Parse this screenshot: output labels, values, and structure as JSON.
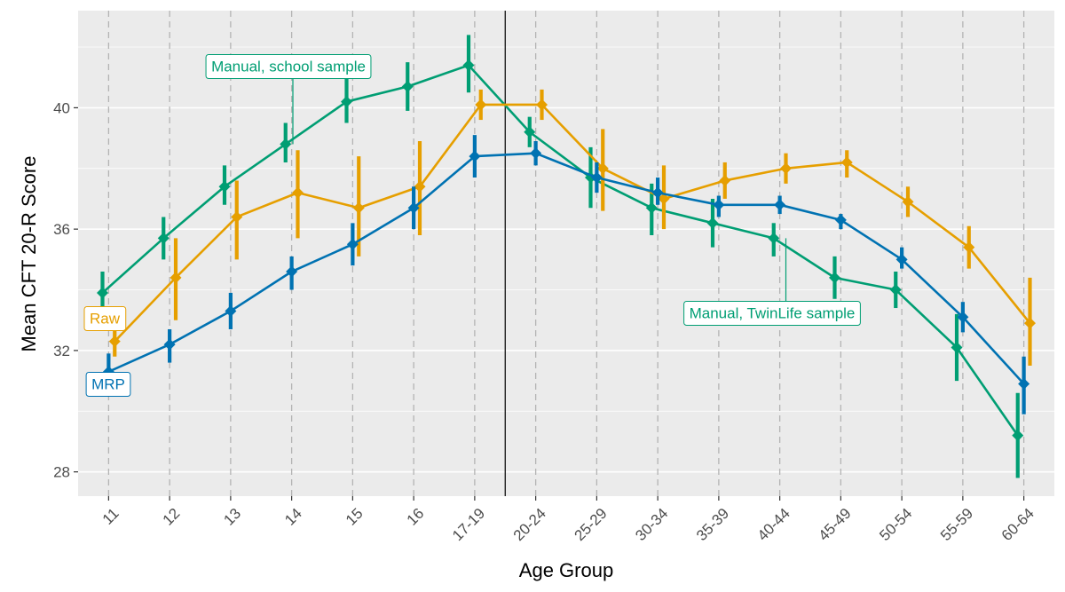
{
  "chart_data": {
    "type": "line",
    "title": "",
    "xlabel": "Age Group",
    "ylabel": "Mean CFT 20-R Score",
    "categories": [
      "11",
      "12",
      "13",
      "14",
      "15",
      "16",
      "17-19",
      "20-24",
      "25-29",
      "30-34",
      "35-39",
      "40-44",
      "45-49",
      "50-54",
      "55-59",
      "60-64"
    ],
    "ylim": [
      27.2,
      43.2
    ],
    "yticks": [
      28,
      32,
      36,
      40
    ],
    "ytick_labels": [
      "28",
      "32",
      "36",
      "40"
    ],
    "divider_between": [
      "17-19",
      "20-24"
    ],
    "grid": true,
    "series": [
      {
        "key": "manual",
        "color": "#009E73",
        "x_offset": -0.1,
        "values": [
          33.9,
          35.7,
          37.4,
          38.8,
          40.2,
          40.7,
          41.4,
          39.2,
          37.7,
          36.7,
          36.2,
          35.7,
          34.4,
          34.0,
          32.1,
          29.2
        ],
        "lower": [
          33.2,
          35.0,
          36.8,
          38.2,
          39.5,
          39.9,
          40.5,
          38.7,
          36.7,
          35.8,
          35.4,
          35.1,
          33.7,
          33.4,
          31.0,
          27.8
        ],
        "upper": [
          34.6,
          36.4,
          38.1,
          39.5,
          41.0,
          41.5,
          42.4,
          39.7,
          38.7,
          37.5,
          37.0,
          36.2,
          35.1,
          34.6,
          33.2,
          30.6
        ]
      },
      {
        "key": "raw",
        "color": "#E69F00",
        "x_offset": 0.1,
        "values": [
          32.3,
          34.4,
          36.4,
          37.2,
          36.7,
          37.4,
          40.1,
          40.1,
          38.0,
          37.0,
          37.6,
          38.0,
          38.2,
          36.9,
          35.4,
          32.9
        ],
        "lower": [
          31.8,
          33.0,
          35.0,
          35.7,
          35.1,
          35.8,
          39.6,
          39.6,
          36.6,
          36.0,
          37.0,
          37.5,
          37.7,
          36.4,
          34.7,
          31.5
        ],
        "upper": [
          32.8,
          35.7,
          37.6,
          38.6,
          38.4,
          38.9,
          40.6,
          40.6,
          39.3,
          38.1,
          38.2,
          38.5,
          38.6,
          37.4,
          36.1,
          34.4
        ]
      },
      {
        "key": "mrp",
        "color": "#0072B2",
        "x_offset": 0.0,
        "values": [
          31.3,
          32.2,
          33.3,
          34.6,
          35.5,
          36.7,
          38.4,
          38.5,
          37.7,
          37.2,
          36.8,
          36.8,
          36.3,
          35.0,
          33.1,
          30.9
        ],
        "lower": [
          30.8,
          31.6,
          32.7,
          34.0,
          34.8,
          36.0,
          37.7,
          38.1,
          37.2,
          36.8,
          36.4,
          36.5,
          36.0,
          34.7,
          32.6,
          29.9
        ],
        "upper": [
          31.9,
          32.7,
          33.9,
          35.1,
          36.2,
          37.4,
          39.1,
          38.9,
          38.2,
          37.7,
          37.1,
          37.1,
          36.5,
          35.4,
          33.6,
          31.8
        ]
      }
    ],
    "annotations": [
      {
        "key": "manual-school",
        "text": "Manual, school sample",
        "series": "manual",
        "color": "#009E73"
      },
      {
        "key": "manual-twinlife",
        "text": "Manual, TwinLife sample",
        "series": "manual",
        "color": "#009E73"
      },
      {
        "key": "raw",
        "text": "Raw",
        "series": "raw",
        "color": "#E69F00"
      },
      {
        "key": "mrp",
        "text": "MRP",
        "series": "mrp",
        "color": "#0072B2"
      }
    ]
  }
}
